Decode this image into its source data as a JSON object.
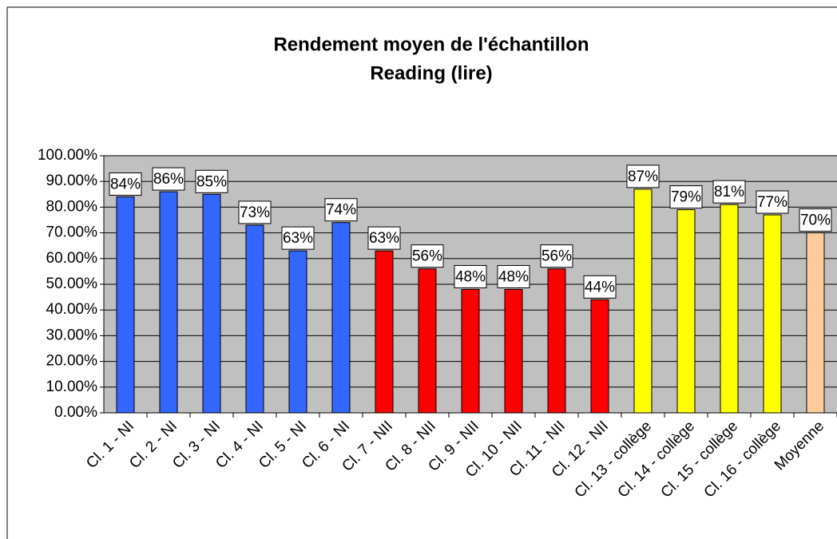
{
  "chart_data": {
    "type": "bar",
    "title": "Rendement moyen de l'échantillon",
    "subtitle": "Reading (lire)",
    "categories": [
      "Cl. 1 - NI",
      "Cl. 2 - NI",
      "Cl. 3 - NI",
      "Cl. 4 - NI",
      "Cl. 5 - NI",
      "Cl. 6 - NI",
      "Cl. 7 - NII",
      "Cl. 8 - NII",
      "Cl. 9 - NII",
      "Cl. 10 - NII",
      "Cl. 11 - NII",
      "Cl. 12 - NII",
      "Cl. 13 - collège",
      "Cl. 14 - collège",
      "Cl. 15 - collège",
      "Cl. 16 - collège",
      "Moyenne"
    ],
    "values": [
      84,
      86,
      85,
      73,
      63,
      74,
      63,
      56,
      48,
      48,
      56,
      44,
      87,
      79,
      81,
      77,
      70
    ],
    "value_labels": [
      "84%",
      "86%",
      "85%",
      "73%",
      "63%",
      "74%",
      "63%",
      "56%",
      "48%",
      "48%",
      "56%",
      "44%",
      "87%",
      "79%",
      "81%",
      "77%",
      "70%"
    ],
    "colors": [
      "#3366ff",
      "#3366ff",
      "#3366ff",
      "#3366ff",
      "#3366ff",
      "#3366ff",
      "#ff0000",
      "#ff0000",
      "#ff0000",
      "#ff0000",
      "#ff0000",
      "#ff0000",
      "#ffff00",
      "#ffff00",
      "#ffff00",
      "#ffff00",
      "#ffcc99"
    ],
    "ylim": [
      0,
      100
    ],
    "yticks": [
      {
        "value": 0,
        "label": "0.00%"
      },
      {
        "value": 10,
        "label": "10.00%"
      },
      {
        "value": 20,
        "label": "20.00%"
      },
      {
        "value": 30,
        "label": "30.00%"
      },
      {
        "value": 40,
        "label": "40.00%"
      },
      {
        "value": 50,
        "label": "50.00%"
      },
      {
        "value": 60,
        "label": "60.00%"
      },
      {
        "value": 70,
        "label": "70.00%"
      },
      {
        "value": 80,
        "label": "80.00%"
      },
      {
        "value": 90,
        "label": "90.00%"
      },
      {
        "value": 100,
        "label": "100.00%"
      }
    ],
    "grid": true
  }
}
